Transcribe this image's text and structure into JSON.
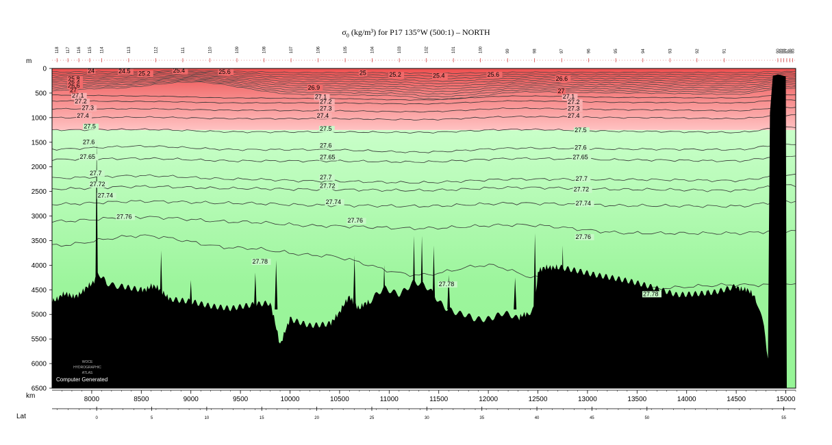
{
  "title": {
    "symbol": "σ",
    "sub": "0",
    "text": " (kg/m³) for P17 135°W (500:1) – NORTH"
  },
  "credit": "Computer Generated",
  "logo_text": [
    "WOCE",
    "HYDROGRAPHIC",
    "ATLAS"
  ],
  "colors": {
    "red_deep": "#ef4f4f",
    "red_light": "#ffc2c2",
    "green_light": "#c9ffc9",
    "green_deep": "#96f596",
    "bottom": "#000000",
    "contour": "#333333"
  },
  "chart_data": {
    "type": "section_contour",
    "x_units_label": "km",
    "y_units_label": "m",
    "lat_label": "Lat",
    "xlim": [
      7600,
      15100
    ],
    "ylim": [
      6500,
      0
    ],
    "x_ticks": [
      8000,
      8500,
      9000,
      9500,
      10000,
      10500,
      11000,
      11500,
      12000,
      12500,
      13000,
      13500,
      14000,
      14500,
      15000
    ],
    "y_ticks": [
      0,
      500,
      1000,
      1500,
      2000,
      2500,
      3000,
      3500,
      4000,
      4500,
      5000,
      5500,
      6000,
      6500
    ],
    "lat_ticks": [
      {
        "label": "0",
        "km": 8050
      },
      {
        "label": "5",
        "km": 8605
      },
      {
        "label": "10",
        "km": 9160
      },
      {
        "label": "15",
        "km": 9715
      },
      {
        "label": "20",
        "km": 10270
      },
      {
        "label": "25",
        "km": 10825
      },
      {
        "label": "30",
        "km": 11380
      },
      {
        "label": "35",
        "km": 11935
      },
      {
        "label": "40",
        "km": 12490
      },
      {
        "label": "45",
        "km": 13045
      },
      {
        "label": "50",
        "km": 13600
      },
      {
        "label": "55",
        "km": 14980
      }
    ],
    "color_break_depth_m": 1250,
    "contours": [
      {
        "value": "27.1",
        "depths": [
          [
            7600,
            540
          ],
          [
            8500,
            560
          ],
          [
            9500,
            600
          ],
          [
            10300,
            610
          ],
          [
            11300,
            640
          ],
          [
            12300,
            560
          ],
          [
            13500,
            590
          ],
          [
            14500,
            600
          ],
          [
            15000,
            540
          ]
        ],
        "labels": [
          [
            7800,
            595
          ],
          [
            10250,
            620
          ],
          [
            12750,
            615
          ]
        ]
      },
      {
        "value": "27.2",
        "depths": [
          [
            7600,
            660
          ],
          [
            8500,
            670
          ],
          [
            9500,
            700
          ],
          [
            10300,
            700
          ],
          [
            11300,
            720
          ],
          [
            12300,
            660
          ],
          [
            13500,
            690
          ],
          [
            14500,
            700
          ],
          [
            15000,
            640
          ]
        ],
        "labels": [
          [
            7830,
            710
          ],
          [
            10300,
            715
          ],
          [
            12800,
            725
          ]
        ]
      },
      {
        "value": "27.3",
        "depths": [
          [
            7600,
            820
          ],
          [
            8500,
            820
          ],
          [
            9500,
            850
          ],
          [
            10300,
            860
          ],
          [
            11300,
            880
          ],
          [
            12300,
            810
          ],
          [
            13500,
            840
          ],
          [
            14500,
            860
          ],
          [
            15000,
            790
          ]
        ],
        "labels": [
          [
            7900,
            845
          ],
          [
            10300,
            855
          ],
          [
            12800,
            855
          ]
        ]
      },
      {
        "value": "27.4",
        "depths": [
          [
            7600,
            1000
          ],
          [
            8500,
            990
          ],
          [
            9500,
            1020
          ],
          [
            10300,
            1020
          ],
          [
            11300,
            1040
          ],
          [
            12300,
            980
          ],
          [
            13500,
            1000
          ],
          [
            14500,
            1020
          ],
          [
            15000,
            950
          ]
        ],
        "labels": [
          [
            7850,
            1000
          ],
          [
            10270,
            1000
          ],
          [
            12800,
            1005
          ]
        ]
      },
      {
        "value": "27.5",
        "depths": [
          [
            7600,
            1250
          ],
          [
            8500,
            1240
          ],
          [
            9500,
            1290
          ],
          [
            10300,
            1290
          ],
          [
            11300,
            1300
          ],
          [
            12300,
            1240
          ],
          [
            13500,
            1280
          ],
          [
            14500,
            1300
          ],
          [
            15000,
            1200
          ]
        ],
        "labels": [
          [
            7920,
            1220
          ],
          [
            10300,
            1265
          ],
          [
            12870,
            1295
          ]
        ]
      },
      {
        "value": "27.6",
        "depths": [
          [
            7600,
            1640
          ],
          [
            8500,
            1580
          ],
          [
            9500,
            1650
          ],
          [
            10300,
            1650
          ],
          [
            11300,
            1700
          ],
          [
            12300,
            1620
          ],
          [
            13500,
            1640
          ],
          [
            14500,
            1650
          ],
          [
            15000,
            1540
          ]
        ],
        "labels": [
          [
            7910,
            1540
          ],
          [
            10300,
            1610
          ],
          [
            12870,
            1650
          ]
        ]
      },
      {
        "value": "27.65",
        "depths": [
          [
            7600,
            1850
          ],
          [
            8500,
            1830
          ],
          [
            9500,
            1880
          ],
          [
            10300,
            1880
          ],
          [
            11300,
            1900
          ],
          [
            12300,
            1830
          ],
          [
            13500,
            1860
          ],
          [
            14500,
            1880
          ],
          [
            15000,
            1780
          ]
        ],
        "labels": [
          [
            7880,
            1840
          ],
          [
            10300,
            1845
          ],
          [
            12850,
            1845
          ]
        ]
      },
      {
        "value": "27.7",
        "depths": [
          [
            7600,
            2230
          ],
          [
            8500,
            2180
          ],
          [
            9500,
            2250
          ],
          [
            10300,
            2290
          ],
          [
            11300,
            2320
          ],
          [
            12300,
            2250
          ],
          [
            13500,
            2260
          ],
          [
            14500,
            2280
          ],
          [
            15000,
            2170
          ]
        ],
        "labels": [
          [
            7980,
            2170
          ],
          [
            10300,
            2255
          ],
          [
            12880,
            2285
          ]
        ]
      },
      {
        "value": "27.72",
        "depths": [
          [
            7600,
            2450
          ],
          [
            8500,
            2400
          ],
          [
            9500,
            2440
          ],
          [
            10300,
            2460
          ],
          [
            11300,
            2480
          ],
          [
            12300,
            2420
          ],
          [
            13500,
            2460
          ],
          [
            14500,
            2480
          ],
          [
            15000,
            2380
          ]
        ],
        "labels": [
          [
            7980,
            2395
          ],
          [
            10300,
            2430
          ],
          [
            12860,
            2500
          ]
        ]
      },
      {
        "value": "27.74",
        "depths": [
          [
            7600,
            2760
          ],
          [
            8500,
            2700
          ],
          [
            9500,
            2740
          ],
          [
            10300,
            2780
          ],
          [
            11300,
            2800
          ],
          [
            12300,
            2740
          ],
          [
            13500,
            2790
          ],
          [
            14500,
            2800
          ],
          [
            15000,
            2700
          ]
        ],
        "labels": [
          [
            8060,
            2625
          ],
          [
            10360,
            2755
          ],
          [
            12880,
            2785
          ]
        ]
      },
      {
        "value": "27.76",
        "depths": [
          [
            7600,
            3110
          ],
          [
            8500,
            3020
          ],
          [
            9500,
            3120
          ],
          [
            10300,
            3200
          ],
          [
            11300,
            3250
          ],
          [
            12300,
            3180
          ],
          [
            13500,
            3350
          ],
          [
            14500,
            3350
          ],
          [
            15000,
            3300
          ]
        ],
        "labels": [
          [
            8250,
            3055
          ],
          [
            10580,
            3135
          ],
          [
            12880,
            3465
          ]
        ]
      },
      {
        "value": "27.78",
        "depths": [
          [
            7600,
            3600
          ],
          [
            8500,
            3400
          ],
          [
            9500,
            3650
          ],
          [
            10300,
            3800
          ],
          [
            11300,
            4200
          ],
          [
            12000,
            4000
          ],
          [
            12500,
            4250
          ],
          [
            13500,
            4480
          ],
          [
            14500,
            4400
          ]
        ],
        "labels": [
          [
            9620,
            3965
          ],
          [
            11500,
            4425
          ],
          [
            13560,
            4625
          ]
        ]
      }
    ],
    "upper_contours": [
      "24",
      "24.5",
      "25",
      "25.2",
      "25.4",
      "25.6",
      "26",
      "26.4",
      "26.6",
      "26.8",
      "27"
    ],
    "upper_labels": [
      {
        "value": "24",
        "km": 7960,
        "depth": 90
      },
      {
        "value": "24.5",
        "km": 8270,
        "depth": 100
      },
      {
        "value": "25.2",
        "km": 8470,
        "depth": 145
      },
      {
        "value": "25.4",
        "km": 8820,
        "depth": 85
      },
      {
        "value": "25.6",
        "km": 9280,
        "depth": 110
      },
      {
        "value": "25",
        "km": 10700,
        "depth": 130
      },
      {
        "value": "25.2",
        "km": 11000,
        "depth": 170
      },
      {
        "value": "25.4",
        "km": 11440,
        "depth": 190
      },
      {
        "value": "25.6",
        "km": 11990,
        "depth": 165
      },
      {
        "value": "25.8",
        "km": 7760,
        "depth": 250
      },
      {
        "value": "26.4",
        "km": 7760,
        "depth": 320
      },
      {
        "value": "26.6",
        "km": 7760,
        "depth": 390
      },
      {
        "value": "27",
        "km": 7780,
        "depth": 480
      },
      {
        "value": "26.9",
        "km": 10180,
        "depth": 430
      },
      {
        "value": "26.6",
        "km": 12680,
        "depth": 250
      },
      {
        "value": "27",
        "km": 12700,
        "depth": 500
      }
    ],
    "stations": [
      "118",
      "117",
      "116",
      "115",
      "114",
      "113",
      "112",
      "111",
      "110",
      "109",
      "108",
      "107",
      "106",
      "105",
      "104",
      "103",
      "102",
      "101",
      "100",
      "99",
      "98",
      "97",
      "96",
      "95",
      "94",
      "93",
      "92",
      "91",
      "90",
      "89",
      "88",
      "87",
      "86",
      "85"
    ],
    "bottom_profile": [
      [
        7600,
        4700
      ],
      [
        7700,
        4600
      ],
      [
        7800,
        4650
      ],
      [
        7900,
        4520
      ],
      [
        8000,
        4420
      ],
      [
        8050,
        4250
      ],
      [
        8080,
        4200
      ],
      [
        8150,
        4350
      ],
      [
        8300,
        4400
      ],
      [
        8500,
        4500
      ],
      [
        8600,
        4400
      ],
      [
        8700,
        4550
      ],
      [
        8800,
        4650
      ],
      [
        9000,
        4700
      ],
      [
        9200,
        4820
      ],
      [
        9400,
        4900
      ],
      [
        9600,
        4850
      ],
      [
        9800,
        4800
      ],
      [
        9900,
        5600
      ],
      [
        9950,
        5300
      ],
      [
        10000,
        5100
      ],
      [
        10200,
        5200
      ],
      [
        10400,
        5150
      ],
      [
        10500,
        5000
      ],
      [
        10600,
        4600
      ],
      [
        10700,
        4900
      ],
      [
        10800,
        4750
      ],
      [
        10950,
        4500
      ],
      [
        11100,
        4550
      ],
      [
        11250,
        4350
      ],
      [
        11400,
        4500
      ],
      [
        11550,
        4800
      ],
      [
        11700,
        5000
      ],
      [
        11850,
        5100
      ],
      [
        12000,
        5050
      ],
      [
        12150,
        5000
      ],
      [
        12300,
        5100
      ],
      [
        12400,
        5000
      ],
      [
        12470,
        4900
      ],
      [
        12500,
        4100
      ],
      [
        12600,
        4080
      ],
      [
        12700,
        3990
      ],
      [
        12900,
        4080
      ],
      [
        13100,
        4200
      ],
      [
        13300,
        4300
      ],
      [
        13500,
        4400
      ],
      [
        13700,
        4500
      ],
      [
        13900,
        4600
      ],
      [
        14100,
        4550
      ],
      [
        14300,
        4500
      ],
      [
        14500,
        4400
      ],
      [
        14600,
        4500
      ],
      [
        14700,
        4700
      ],
      [
        14780,
        5300
      ],
      [
        14820,
        5900
      ],
      [
        14840,
        900
      ],
      [
        14870,
        150
      ],
      [
        14920,
        120
      ],
      [
        15000,
        160
      ],
      [
        15010,
        6500
      ]
    ]
  }
}
